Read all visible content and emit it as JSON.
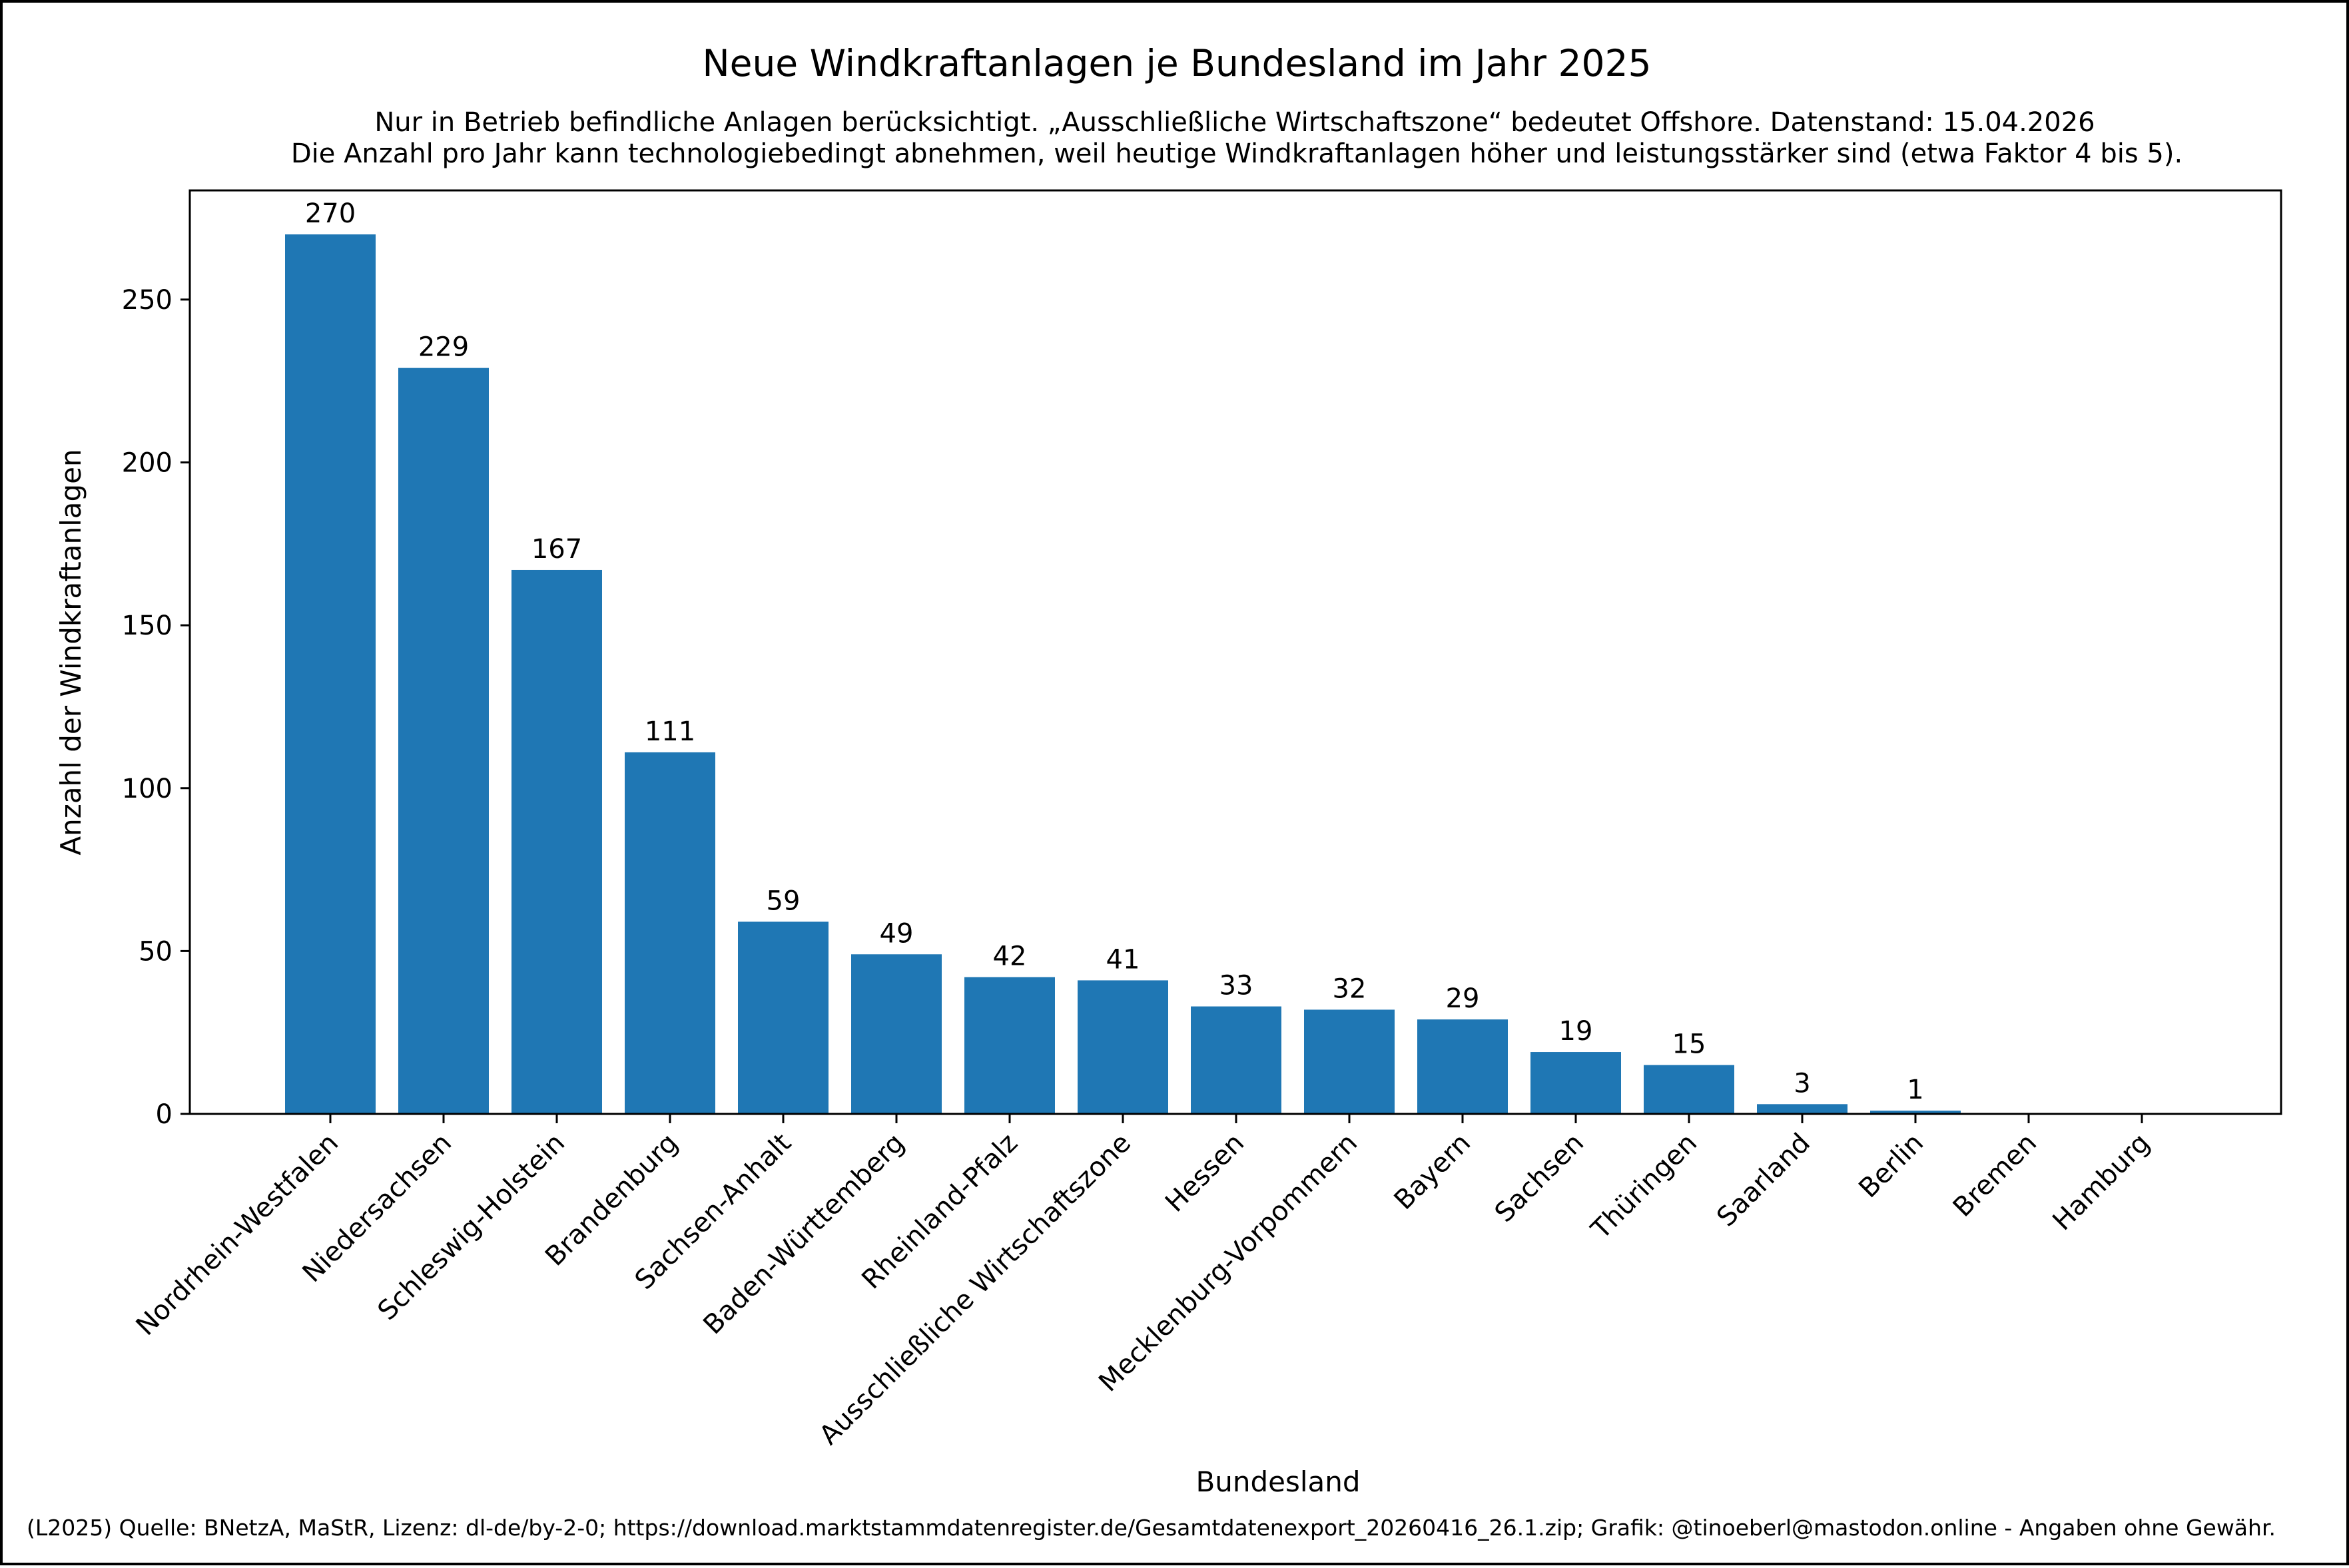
{
  "chart_data": {
    "type": "bar",
    "title": "Neue Windkraftanlagen je Bundesland im Jahr 2025",
    "subtitle": [
      "Nur in Betrieb befindliche Anlagen berücksichtigt. „Ausschließliche Wirtschaftszone“ bedeutet Offshore. Datenstand: 15.04.2026",
      "Die Anzahl pro Jahr kann technologiebedingt abnehmen, weil heutige Windkraftanlagen höher und leistungsstärker sind (etwa Faktor 4 bis 5)."
    ],
    "xlabel": "Bundesland",
    "ylabel": "Anzahl der Windkraftanlagen",
    "categories": [
      "Nordrhein-Westfalen",
      "Niedersachsen",
      "Schleswig-Holstein",
      "Brandenburg",
      "Sachsen-Anhalt",
      "Baden-Württemberg",
      "Rheinland-Pfalz",
      "Ausschließliche Wirtschaftszone",
      "Hessen",
      "Mecklenburg-Vorpommern",
      "Bayern",
      "Sachsen",
      "Thüringen",
      "Saarland",
      "Berlin",
      "Bremen",
      "Hamburg"
    ],
    "values": [
      270,
      229,
      167,
      111,
      59,
      49,
      42,
      41,
      33,
      32,
      29,
      19,
      15,
      3,
      1,
      0,
      0
    ],
    "data_labels": [
      "270",
      "229",
      "167",
      "111",
      "59",
      "49",
      "42",
      "41",
      "33",
      "32",
      "29",
      "19",
      "15",
      "3",
      "1",
      "",
      ""
    ],
    "ylim": [
      0,
      283.5
    ],
    "yticks": [
      0,
      50,
      100,
      150,
      200,
      250
    ],
    "bar_color": "#1f77b4",
    "grid": false,
    "legend": "none"
  },
  "footer": {
    "credit": "(L2025) Quelle: BNetzA, MaStR, Lizenz: dl-de/by-2-0; https://download.marktstammdatenregister.de/Gesamtdatenexport_20260416_26.1.zip; Grafik: @tinoeberl@mastodon.online - Angaben ohne Gewähr."
  }
}
